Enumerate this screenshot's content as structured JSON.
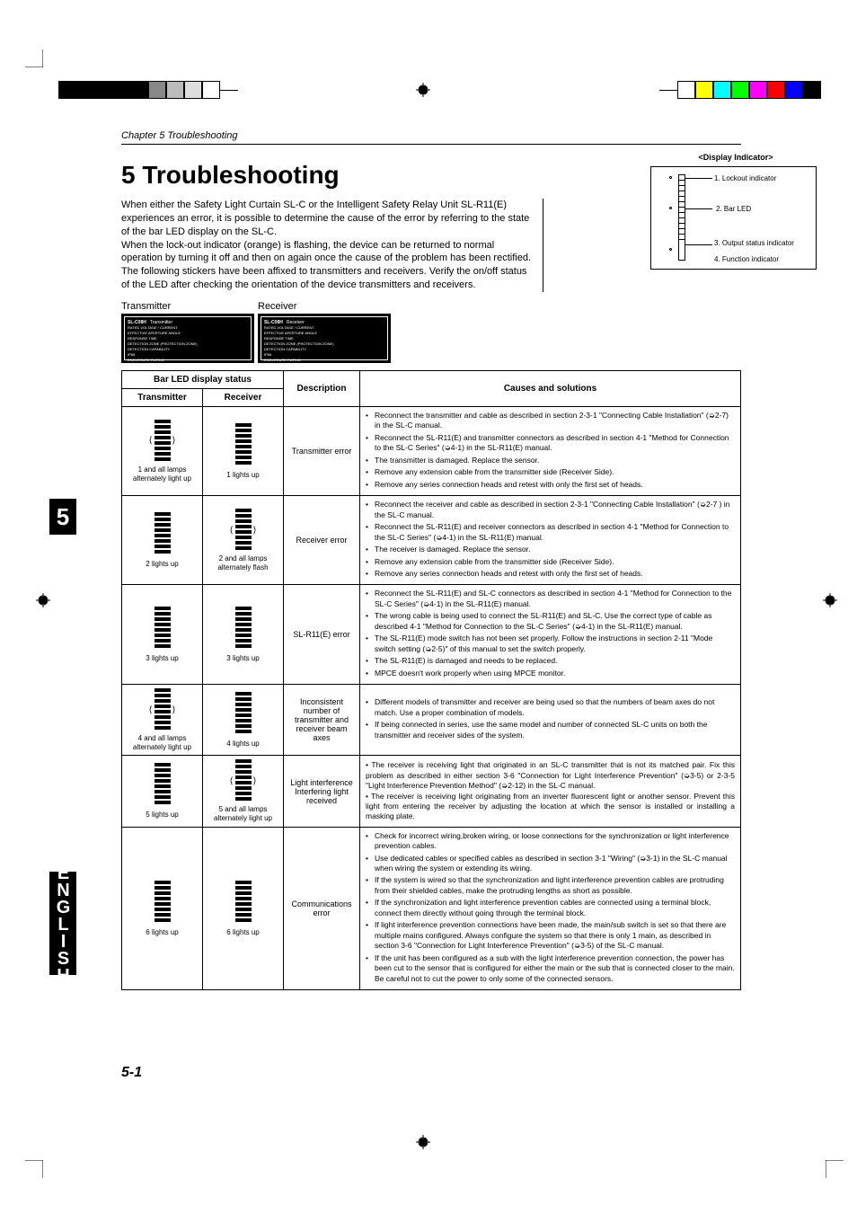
{
  "chapter_header": "Chapter 5  Troubleshooting",
  "main_title": "5 Troubleshooting",
  "intro_p1": "When either the Safety Light Curtain SL-C or the Intelligent Safety Relay Unit SL-R11(E) experiences an error, it is possible to determine the cause of the error by referring to the state of the bar LED display on the SL-C.",
  "intro_p2": "When the lock-out indicator (orange) is flashing, the device can be returned to normal operation by turning it off and then on again once the cause of the problem has been rectified.",
  "intro_p3": "The following stickers have been affixed to transmitters and receivers. Verify the on/off status of the LED after checking the orientation of the device transmitters and receivers.",
  "tx_label": "Transmitter",
  "rx_label": "Receiver",
  "display_indicator": {
    "title": "<Display Indicator>",
    "labels": [
      "1. Lockout indicator",
      "2. Bar LED",
      "3. Output status indicator",
      "4. Function indicator"
    ]
  },
  "sticker": {
    "model": "SL-C08H",
    "fields": "RATED VOLTAGE / CURRENT\nEFFECTIVE APERTURE ANGLE\nRESPONSE TIME\nDETECTION ZONE (PROTECTION ZONE)\nDETECTION CAPABILITY\nIP65\nENCLOSURE RATING\nAMBIENT TEMPERATURE",
    "values": "24V DC (Dock Class2)\nSee Instruction Manual\n15ms\n142(mm)/142(mm)\nφ30 φ40 φ50 φ60mm\nφ0.5° (Im or over)\nIP65\n-10°C to 55°C"
  },
  "table": {
    "headers": {
      "led_status": "Bar LED display status",
      "transmitter": "Transmitter",
      "receiver": "Receiver",
      "description": "Description",
      "causes": "Causes and solutions"
    },
    "rows": [
      {
        "tx_caption": "1 and all lamps alternately light up",
        "rx_caption": "1 lights up",
        "description": "Transmitter error",
        "causes": [
          "Reconnect the transmitter and cable as described in section 2-3-1 \"Connecting Cable Installation\" (➭2-7) in the SL-C manual.",
          "Reconnect the SL-R11(E) and transmitter connectors as described in section 4-1 \"Method for Connection to the SL-C Series\" (➭4-1) in the SL-R11(E) manual.",
          "The transmitter is damaged. Replace the sensor.",
          "Remove any extension cable from the transmitter side (Receiver Side).",
          "Remove any series connection heads and retest with only the first set of heads."
        ]
      },
      {
        "tx_caption": "2 lights up",
        "rx_caption": "2 and all lamps alternately flash",
        "description": "Receiver error",
        "causes": [
          "Reconnect the receiver and cable as described in section 2-3-1 \"Connecting Cable Installation\" (➭2-7 ) in the SL-C manual.",
          "Reconnect the SL-R11(E) and receiver connectors as described in section 4-1 \"Method for Connection to the SL-C Series\" (➭4-1) in the SL-R11(E) manual.",
          "The receiver is damaged. Replace the sensor.",
          "Remove any extension cable from the transmitter side (Receiver Side).",
          "Remove any series connection heads and retest with only the first set of heads."
        ]
      },
      {
        "tx_caption": "3 lights up",
        "rx_caption": "3 lights up",
        "description": "SL-R11(E) error",
        "causes": [
          "Reconnect the SL-R11(E) and SL-C connectors as described in section 4-1 \"Method for Connection to the SL-C Series\" (➭4-1) in the SL-R11(E) manual.",
          "The wrong cable is being used to connect the SL-R11(E) and SL-C. Use the correct type of cable as described 4-1 \"Method for Connection to the SL-C Series\" (➭4-1) in the SL-R11(E) manual.",
          "The SL-R11(E) mode switch has not been set properly. Follow the instructions in section 2-11 \"Mode switch setting (➭2-5)\" of this manual to set the switch properly.",
          "The SL-R11(E) is damaged and needs to be replaced.",
          "MPCE doesn't work properly when using MPCE monitor."
        ]
      },
      {
        "tx_caption": "4 and all lamps alternately light up",
        "rx_caption": "4 lights up",
        "description": "Inconsistent number of transmitter and receiver beam axes",
        "causes": [
          "Different models of transmitter and receiver are being used so that the numbers of beam axes do not match. Use a proper combination of models.",
          "If being connected in series, use the same model and number of connected SL-C units on both the transmitter and receiver sides of the system."
        ]
      },
      {
        "tx_caption": "5 lights up",
        "rx_caption": "5 and all lamps alternately light up",
        "description": "Light interference Interfering light received",
        "causes_text": "• The receiver is receiving light that originated in an SL-C transmitter that is not its matched pair. Fix this problem as described in either section 3-6 \"Connection for Light Interference Prevention\" (➭3-5) or 2-3-5 \"Light Interference Prevention Method\"  (➭2-12) in the SL-C manual.\n• The receiver is receiving light originating from an inverter fluorescent light or another sensor. Prevent this light from entering the receiver by adjusting the location at which the sensor is installed or installing a masking plate."
      },
      {
        "tx_caption": "6 lights up",
        "rx_caption": "6 lights up",
        "description": "Communications error",
        "causes": [
          "Check for incorrect wiring,broken wiring, or loose connections for the synchronization or light interference prevention cables.",
          "Use dedicated cables or specified cables as described in section 3-1 \"Wiring\" (➭3-1) in the SL-C manual when wiring the system or extending its wiring.",
          "If the system is wired so that the synchronization and light interference prevention cables are protruding from their shielded cables, make the protruding lengths as short as possible.",
          "If the synchronization and light interference prevention cables are connected using a terminal block, connect them directly without going through the terminal block.",
          "If light interference prevention connections have been made, the main/sub switch is set so that there are multiple mains configured. Always configure the system so that there is only 1 main, as described in section 3-6 \"Connection for Light Interference Prevention\" (➭3-5) of the SL-C manual.",
          "If the unit has been configured as a sub with the light interference prevention connection, the power has been cut to the sensor that is configured for either the main or the sub that is connected closer to the main. Be careful not to cut the power to only some of the connected sensors."
        ]
      }
    ]
  },
  "side_tab": "5",
  "english_tab": "ENGLISH",
  "page_num": "5-1",
  "colors": {
    "top_left": [
      "#000",
      "#000",
      "#000",
      "#000",
      "#000",
      "#888",
      "#bbb",
      "#ddd",
      "#fff"
    ],
    "top_right": [
      "#fff",
      "#ff0",
      "#0ff",
      "#0f0",
      "#f0f",
      "#f00",
      "#00f",
      "#000"
    ]
  }
}
